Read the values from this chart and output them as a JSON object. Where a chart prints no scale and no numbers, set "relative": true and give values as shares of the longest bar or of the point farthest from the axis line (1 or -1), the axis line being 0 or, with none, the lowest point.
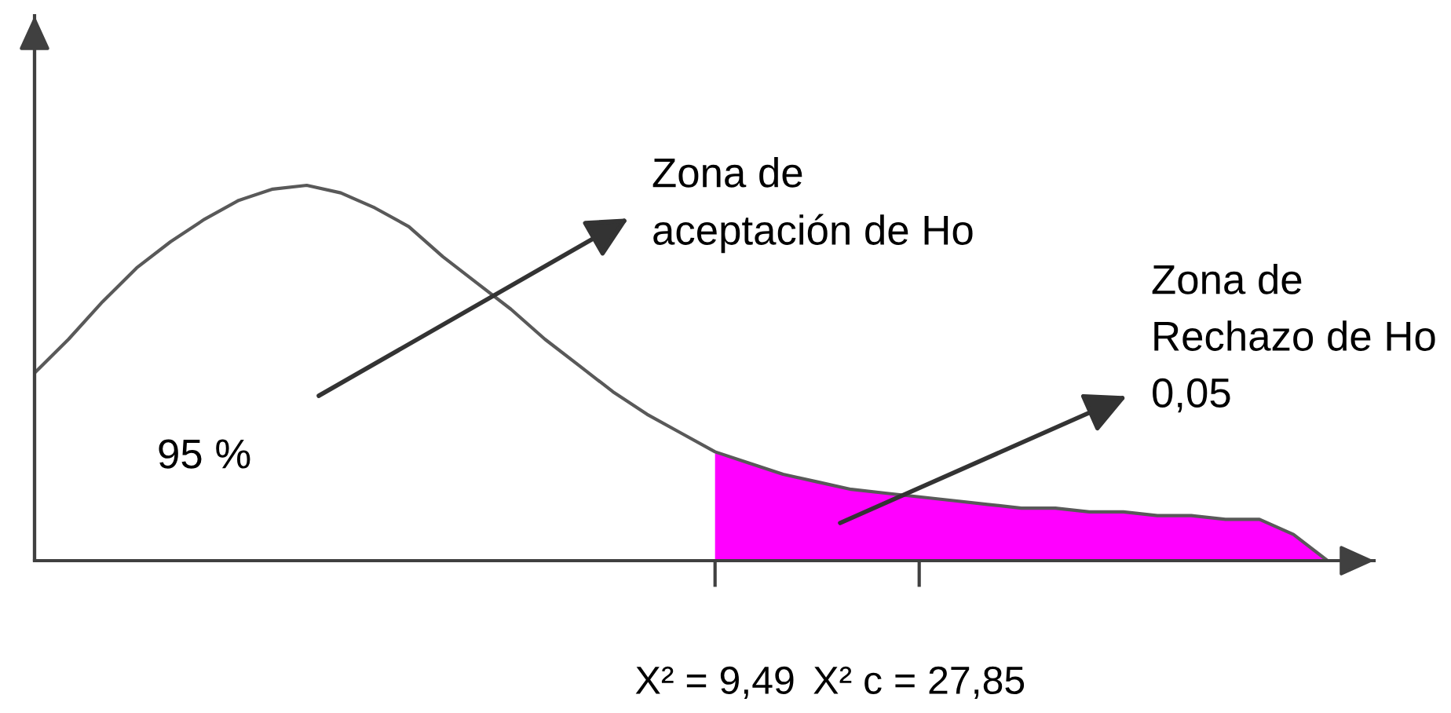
{
  "chart_data": {
    "type": "line",
    "relative": true,
    "categories": [
      null,
      null,
      null,
      null,
      null,
      null,
      null,
      null,
      null,
      null,
      null,
      null,
      null,
      null,
      null,
      null,
      null,
      null,
      null,
      null,
      "X² = 9,49",
      null,
      null,
      null,
      null,
      null,
      "X² c = 27,85",
      null,
      null,
      null,
      null,
      null,
      null,
      null,
      null,
      null,
      null,
      null,
      null
    ],
    "series": [
      {
        "color": "#595959",
        "values": [
          0.5,
          0.59,
          0.69,
          0.78,
          0.85,
          0.91,
          0.96,
          0.99,
          1,
          0.98,
          0.94,
          0.89,
          0.81,
          0.74,
          0.67,
          0.59,
          0.52,
          0.45,
          0.39,
          0.34,
          0.29,
          0.26,
          0.23,
          0.21,
          0.19,
          0.18,
          0.17,
          0.16,
          0.15,
          0.14,
          0.14,
          0.13,
          0.13,
          0.12,
          0.12,
          0.11,
          0.11,
          0.07,
          0
        ]
      },
      {
        "type": "area",
        "color": "#ff00ff",
        "values": [
          null,
          null,
          null,
          null,
          null,
          null,
          null,
          null,
          null,
          null,
          null,
          null,
          null,
          null,
          null,
          null,
          null,
          null,
          null,
          null,
          0.29,
          0.26,
          0.23,
          0.21,
          0.19,
          0.18,
          0.17,
          0.16,
          0.15,
          0.14,
          0.14,
          0.13,
          0.13,
          0.12,
          0.12,
          0.11,
          0.11,
          0.07,
          0
        ]
      }
    ],
    "annotations": [
      "Zona de\naceptación de Ho",
      "95 %",
      "Zona de\nRechazo de Ho\n0,05"
    ]
  }
}
